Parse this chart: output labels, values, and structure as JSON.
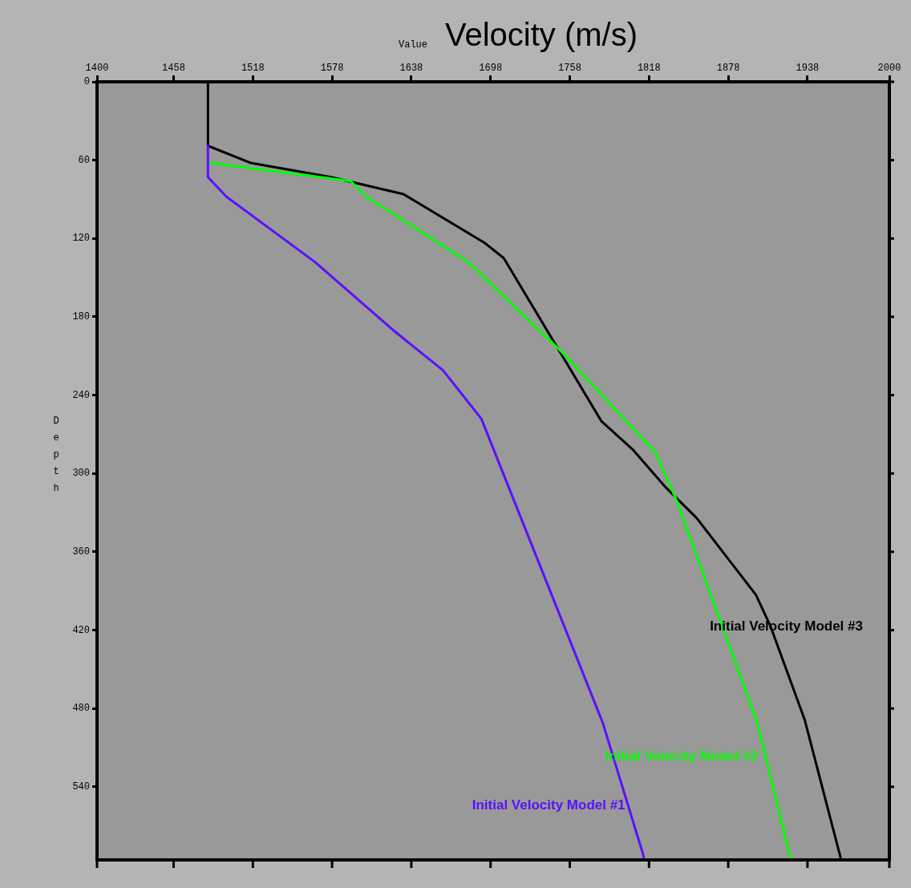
{
  "chart_data": {
    "type": "line",
    "title": "Velocity (m/s)",
    "xlabel": "Value",
    "ylabel": "Depth",
    "xlim": [
      1400,
      2000
    ],
    "xticks": [
      1400,
      1458,
      1518,
      1578,
      1638,
      1698,
      1758,
      1818,
      1878,
      1938,
      2000
    ],
    "ylim": [
      596,
      0
    ],
    "yticks": [
      0,
      60,
      120,
      180,
      240,
      300,
      360,
      420,
      480,
      540
    ],
    "grid": false,
    "legend": "bottom right",
    "marker": "none",
    "line_style": "solid",
    "series": [
      {
        "name": "Initial Velocity Model #1",
        "color": "#5a10ff",
        "x": [
          1484,
          1484,
          1498,
          1565,
          1624,
          1662,
          1691,
          1783,
          1813,
          1814
        ],
        "values": [
          49,
          73,
          88,
          138,
          190,
          221,
          258,
          491,
          590,
          594
        ]
      },
      {
        "name": "Initial Velocity Model #2",
        "color": "#00ff00",
        "x": [
          1486,
          1592,
          1604,
          1681,
          1752,
          1823,
          1839,
          1900,
          1924,
          1925
        ],
        "values": [
          62,
          76,
          88,
          138,
          207,
          284,
          321,
          491,
          590,
          594
        ]
      },
      {
        "name": "Initial Velocity Model #3",
        "color": "#000000",
        "x": [
          1484,
          1484,
          1516,
          1577,
          1632,
          1693,
          1708,
          1782,
          1806,
          1831,
          1854,
          1899,
          1910,
          1936,
          1963
        ],
        "values": [
          0,
          49,
          62,
          73,
          86,
          123,
          135,
          260,
          282,
          311,
          334,
          393,
          417,
          489,
          594
        ]
      }
    ]
  }
}
